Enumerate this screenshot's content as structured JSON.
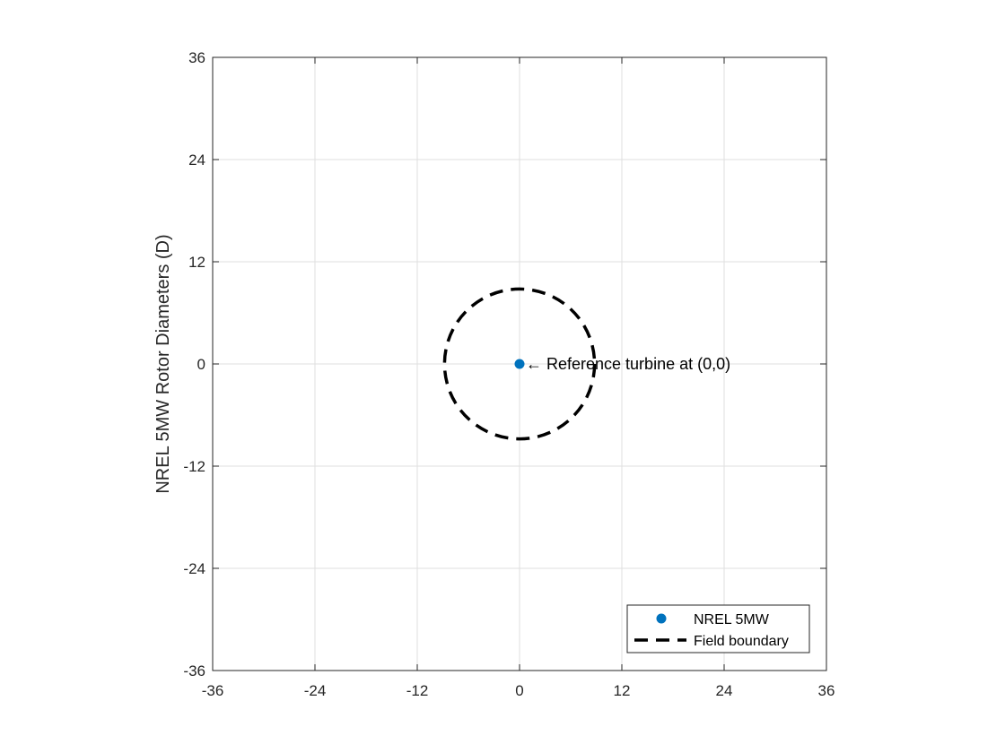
{
  "chart_data": {
    "type": "scatter",
    "title": "",
    "xlabel": "",
    "ylabel": "NREL 5MW Rotor Diameters (D)",
    "xlim": [
      -36,
      36
    ],
    "ylim": [
      -36,
      36
    ],
    "xticks": [
      -36,
      -24,
      -12,
      0,
      12,
      24,
      36
    ],
    "yticks": [
      -36,
      -24,
      -12,
      0,
      12,
      24,
      36
    ],
    "xtick_labels": [
      "-36",
      "-24",
      "-12",
      "0",
      "12",
      "24",
      "36"
    ],
    "ytick_labels": [
      "-36",
      "-24",
      "-12",
      "0",
      "12",
      "24",
      "36"
    ],
    "grid": true,
    "legend_position": "bottom-right",
    "series": [
      {
        "name": "NREL 5MW",
        "kind": "markers",
        "color": "#0072BD",
        "points": [
          {
            "x": 0,
            "y": 0
          }
        ]
      },
      {
        "name": "Field boundary",
        "kind": "dashed-circle",
        "color": "#000000",
        "center": {
          "x": 0,
          "y": 0
        },
        "radius": 8.8
      }
    ],
    "annotations": [
      {
        "text": "← Reference turbine at (0,0)",
        "x": 0,
        "y": 0
      }
    ]
  }
}
